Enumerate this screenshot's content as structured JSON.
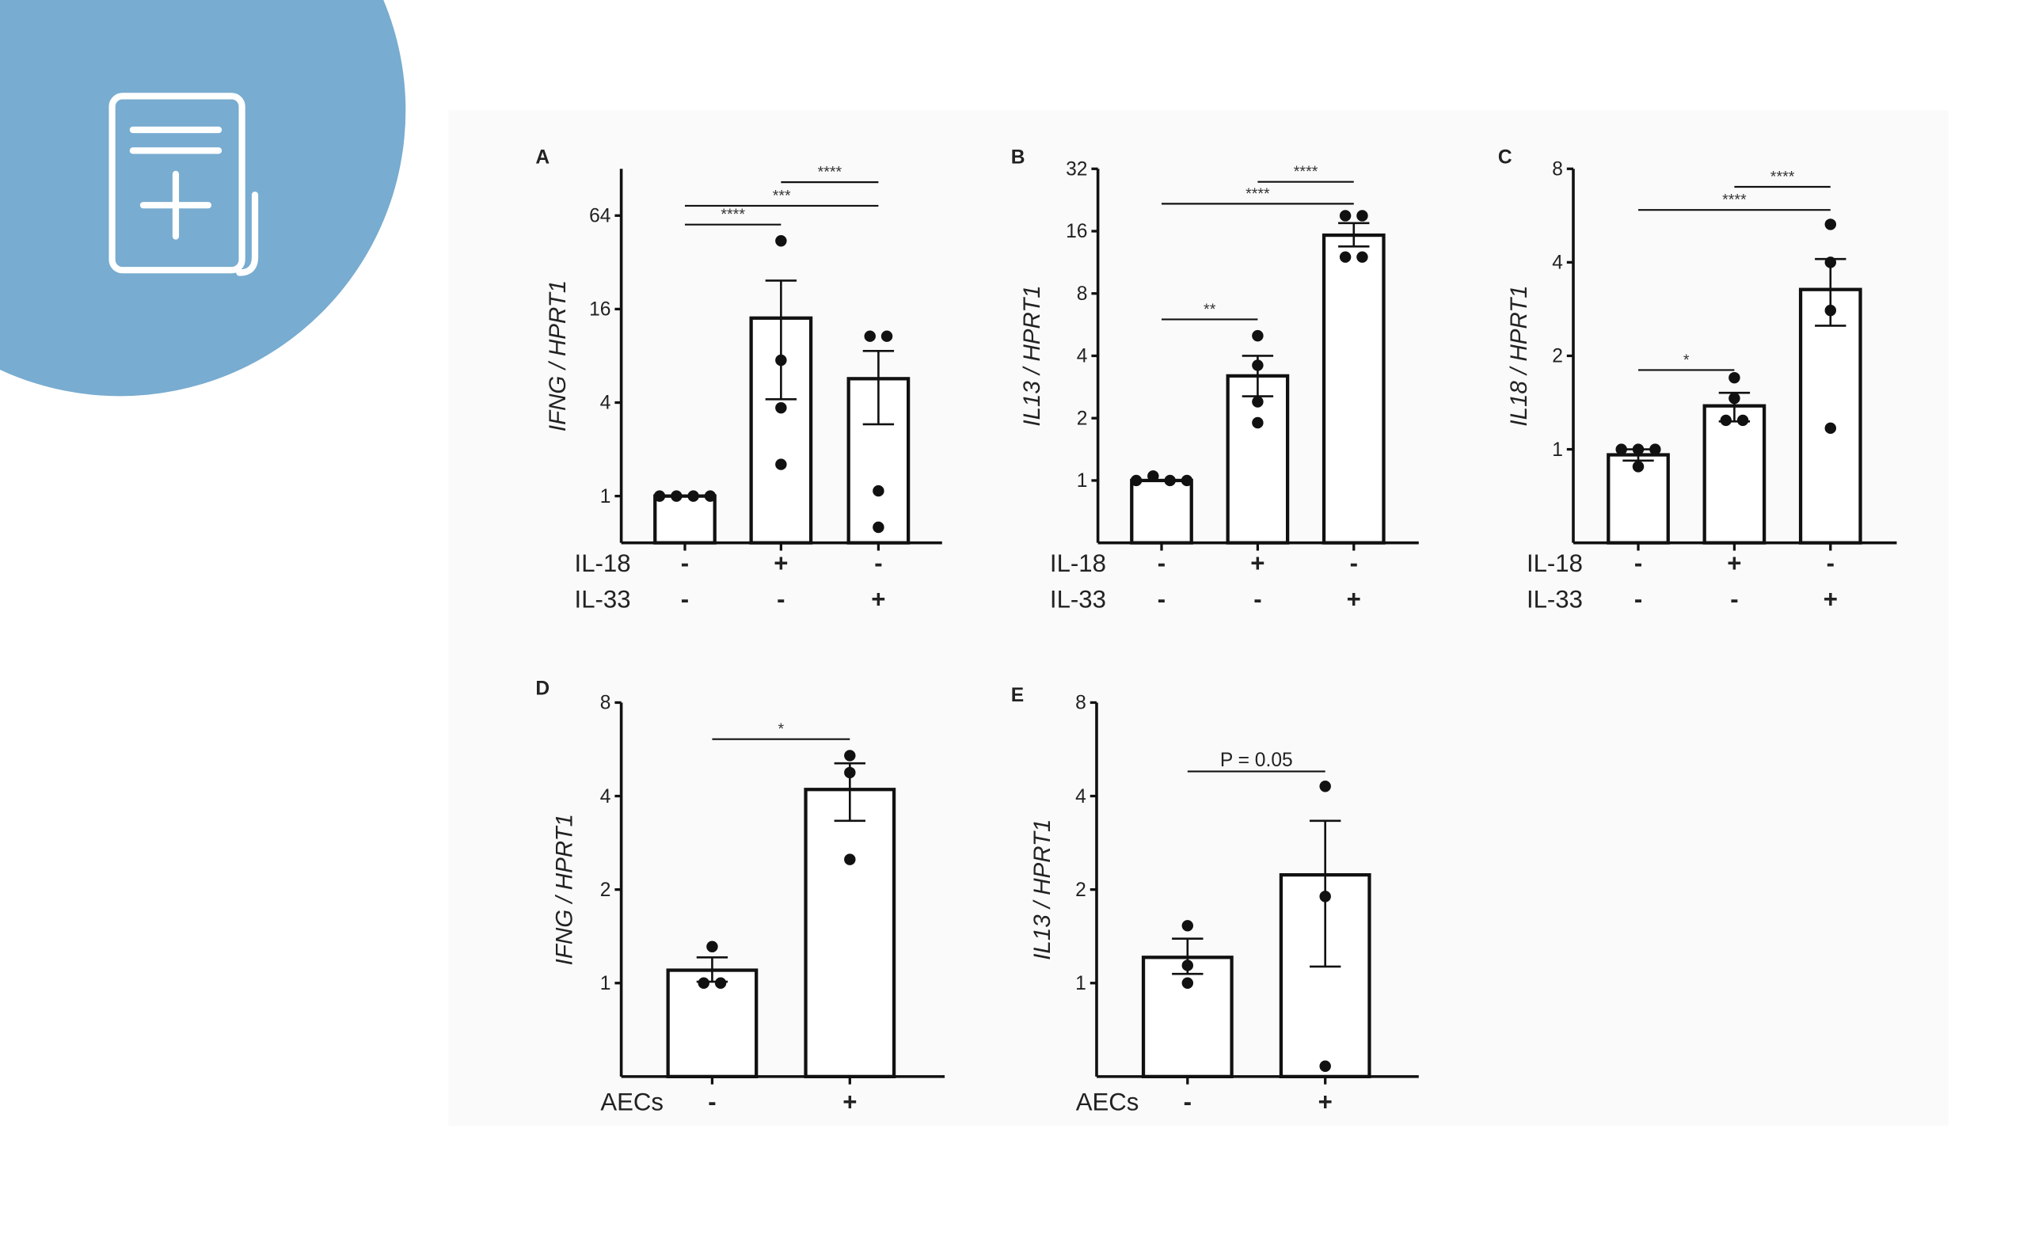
{
  "colors": {
    "badge": "#78acd0",
    "panel_bg": "#fafafa",
    "ink": "#111111"
  },
  "badge_icon": "document-add-icon",
  "chart_data": [
    {
      "type": "bar",
      "panel": "A",
      "ylabel": "IFNG / HPRT1",
      "yscale": "log2",
      "ylim": [
        0.5,
        128
      ],
      "yticks": [
        1,
        4,
        16,
        64
      ],
      "ytick_labels": [
        "1",
        "4",
        "16",
        "64"
      ],
      "group_rows": [
        {
          "label": "IL-18",
          "signs": [
            "-",
            "+",
            "-"
          ]
        },
        {
          "label": "IL-33",
          "signs": [
            "-",
            "-",
            "+"
          ]
        }
      ],
      "values": [
        1.0,
        14,
        5.7
      ],
      "sem": [
        [
          1.0,
          1.0
        ],
        [
          4.2,
          24.4
        ],
        [
          2.9,
          8.6
        ]
      ],
      "points": [
        [
          1,
          1,
          1,
          1
        ],
        [
          44,
          7.5,
          3.7,
          1.6
        ],
        [
          10.7,
          10.7,
          1.08,
          0.63
        ]
      ],
      "significance": [
        {
          "from": 0,
          "to": 1,
          "y": 56,
          "label": "****"
        },
        {
          "from": 0,
          "to": 2,
          "y": 74,
          "label": "***"
        },
        {
          "from": 1,
          "to": 2,
          "y": 105,
          "label": "****"
        }
      ]
    },
    {
      "type": "bar",
      "panel": "B",
      "ylabel": "IL13 / HPRT1",
      "yscale": "log2",
      "ylim": [
        0.5,
        32
      ],
      "yticks": [
        1,
        2,
        4,
        8,
        16,
        32
      ],
      "ytick_labels": [
        "1",
        "2",
        "4",
        "8",
        "16",
        "32"
      ],
      "group_rows": [
        {
          "label": "IL-18",
          "signs": [
            "-",
            "+",
            "-"
          ]
        },
        {
          "label": "IL-33",
          "signs": [
            "-",
            "-",
            "+"
          ]
        }
      ],
      "values": [
        1.0,
        3.2,
        15.3
      ],
      "sem": [
        [
          1.0,
          1.0
        ],
        [
          2.55,
          4.0
        ],
        [
          13.5,
          17.5
        ]
      ],
      "points": [
        [
          1,
          1.05,
          1,
          1
        ],
        [
          5.0,
          3.6,
          2.4,
          1.9
        ],
        [
          19,
          19,
          12,
          12
        ]
      ],
      "significance": [
        {
          "from": 0,
          "to": 1,
          "y": 6,
          "label": "**"
        },
        {
          "from": 0,
          "to": 2,
          "y": 21.7,
          "label": "****"
        },
        {
          "from": 1,
          "to": 2,
          "y": 27.7,
          "label": "****"
        }
      ]
    },
    {
      "type": "bar",
      "panel": "C",
      "ylabel": "IL18 / HPRT1",
      "yscale": "log2",
      "ylim": [
        0.5,
        8
      ],
      "yticks": [
        1,
        2,
        4,
        8
      ],
      "ytick_labels": [
        "1",
        "2",
        "4",
        "8"
      ],
      "group_rows": [
        {
          "label": "IL-18",
          "signs": [
            "-",
            "+",
            "-"
          ]
        },
        {
          "label": "IL-33",
          "signs": [
            "-",
            "-",
            "+"
          ]
        }
      ],
      "values": [
        0.96,
        1.38,
        3.27
      ],
      "sem": [
        [
          0.92,
          1.0
        ],
        [
          1.23,
          1.52
        ],
        [
          2.5,
          4.1
        ]
      ],
      "points": [
        [
          1,
          1,
          1,
          0.88
        ],
        [
          1.7,
          1.46,
          1.24,
          1.24
        ],
        [
          5.3,
          4.0,
          2.8,
          1.17
        ]
      ],
      "significance": [
        {
          "from": 0,
          "to": 1,
          "y": 1.8,
          "label": "*"
        },
        {
          "from": 0,
          "to": 2,
          "y": 5.9,
          "label": "****"
        },
        {
          "from": 1,
          "to": 2,
          "y": 7.0,
          "label": "****"
        }
      ]
    },
    {
      "type": "bar",
      "panel": "D",
      "ylabel": "IFNG / HPRT1",
      "yscale": "log2",
      "ylim": [
        0.5,
        8
      ],
      "yticks": [
        1,
        2,
        4,
        8
      ],
      "ytick_labels": [
        "1",
        "2",
        "4",
        "8"
      ],
      "group_rows": [
        {
          "label": "AECs",
          "signs": [
            "-",
            "+"
          ]
        }
      ],
      "values": [
        1.1,
        4.2
      ],
      "sem": [
        [
          1.01,
          1.21
        ],
        [
          3.33,
          5.1
        ]
      ],
      "points": [
        [
          1.31,
          1.0,
          1.0
        ],
        [
          5.4,
          4.76,
          2.5
        ]
      ],
      "significance": [
        {
          "from": 0,
          "to": 1,
          "y": 6.1,
          "label": "*"
        }
      ]
    },
    {
      "type": "bar",
      "panel": "E",
      "ylabel": "IL13 / HPRT1",
      "yscale": "log2",
      "ylim": [
        0.5,
        8
      ],
      "yticks": [
        1,
        2,
        4,
        8
      ],
      "ytick_labels": [
        "1",
        "2",
        "4",
        "8"
      ],
      "group_rows": [
        {
          "label": "AECs",
          "signs": [
            "-",
            "+"
          ]
        }
      ],
      "values": [
        1.21,
        2.23
      ],
      "sem": [
        [
          1.07,
          1.39
        ],
        [
          1.13,
          3.33
        ]
      ],
      "points": [
        [
          1.53,
          1.14,
          1.0
        ],
        [
          4.3,
          1.9,
          0.54
        ]
      ],
      "significance": [
        {
          "from": 0,
          "to": 1,
          "y": 4.8,
          "label": "P = 0.05",
          "italic_prefix": "P"
        }
      ]
    }
  ]
}
